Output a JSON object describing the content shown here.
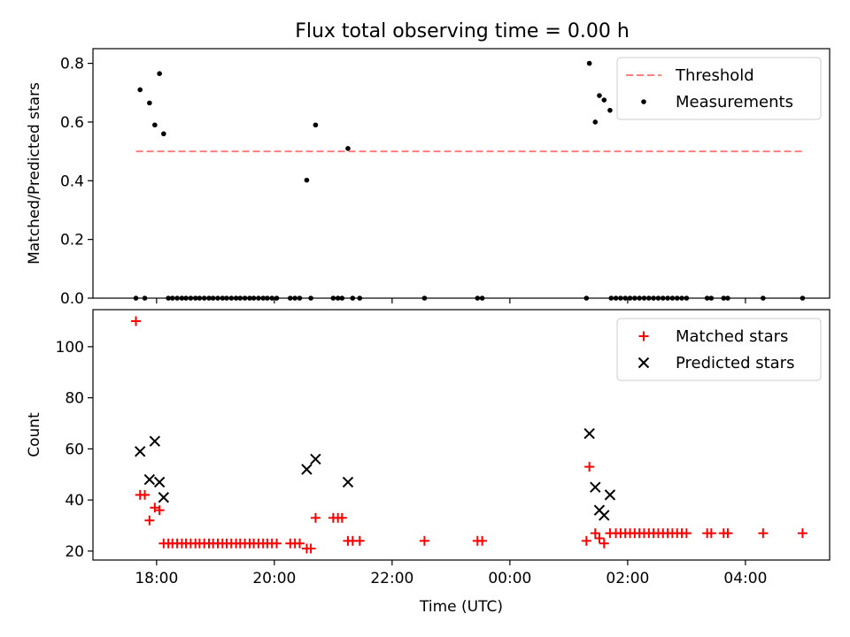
{
  "figure": {
    "title": "Flux total observing time = 0.00 h"
  },
  "chart_data": [
    {
      "type": "scatter",
      "panel": "top",
      "title": "Flux total observing time = 0.00 h",
      "xlabel": "",
      "ylabel": "Matched/Predicted stars",
      "xlim": [
        16.92,
        29.43
      ],
      "ylim": [
        0.0,
        0.85
      ],
      "yticks": [
        0.0,
        0.2,
        0.4,
        0.6,
        0.8
      ],
      "ytick_labels": [
        "0.0",
        "0.2",
        "0.4",
        "0.6",
        "0.8"
      ],
      "xticks": [
        18,
        20,
        22,
        24,
        26,
        28
      ],
      "xtick_labels": [
        "",
        "",
        "",
        "",
        "",
        ""
      ],
      "legend_position": "top-right",
      "threshold": {
        "name": "Threshold",
        "value": 0.5,
        "x_range": [
          17.65,
          28.97
        ],
        "color": "#ff7f7f",
        "style": "dashed"
      },
      "series": [
        {
          "name": "Measurements",
          "color": "#000000",
          "marker": "dot",
          "points": [
            [
              17.65,
              0.0
            ],
            [
              17.72,
              0.71
            ],
            [
              17.8,
              0.0
            ],
            [
              17.88,
              0.665
            ],
            [
              17.97,
              0.59
            ],
            [
              18.05,
              0.765
            ],
            [
              18.12,
              0.56
            ],
            [
              18.2,
              0.0
            ],
            [
              18.27,
              0.0
            ],
            [
              18.35,
              0.0
            ],
            [
              18.43,
              0.0
            ],
            [
              18.5,
              0.0
            ],
            [
              18.58,
              0.0
            ],
            [
              18.66,
              0.0
            ],
            [
              18.73,
              0.0
            ],
            [
              18.81,
              0.0
            ],
            [
              18.89,
              0.0
            ],
            [
              18.96,
              0.0
            ],
            [
              19.04,
              0.0
            ],
            [
              19.12,
              0.0
            ],
            [
              19.19,
              0.0
            ],
            [
              19.27,
              0.0
            ],
            [
              19.35,
              0.0
            ],
            [
              19.42,
              0.0
            ],
            [
              19.5,
              0.0
            ],
            [
              19.58,
              0.0
            ],
            [
              19.65,
              0.0
            ],
            [
              19.73,
              0.0
            ],
            [
              19.81,
              0.0
            ],
            [
              19.88,
              0.0
            ],
            [
              19.96,
              0.0
            ],
            [
              20.04,
              0.0
            ],
            [
              20.27,
              0.0
            ],
            [
              20.35,
              0.0
            ],
            [
              20.43,
              0.0
            ],
            [
              20.55,
              0.402
            ],
            [
              20.62,
              0.0
            ],
            [
              20.7,
              0.59
            ],
            [
              21.0,
              0.0
            ],
            [
              21.08,
              0.0
            ],
            [
              21.15,
              0.0
            ],
            [
              21.25,
              0.51
            ],
            [
              21.33,
              0.0
            ],
            [
              21.45,
              0.0
            ],
            [
              22.55,
              0.0
            ],
            [
              23.45,
              0.0
            ],
            [
              23.53,
              0.0
            ],
            [
              25.3,
              0.0
            ],
            [
              25.35,
              0.8
            ],
            [
              25.45,
              0.6
            ],
            [
              25.52,
              0.69
            ],
            [
              25.6,
              0.675
            ],
            [
              25.7,
              0.64
            ],
            [
              25.72,
              0.0
            ],
            [
              25.8,
              0.0
            ],
            [
              25.88,
              0.0
            ],
            [
              25.96,
              0.0
            ],
            [
              26.04,
              0.0
            ],
            [
              26.12,
              0.0
            ],
            [
              26.2,
              0.0
            ],
            [
              26.28,
              0.0
            ],
            [
              26.36,
              0.0
            ],
            [
              26.44,
              0.0
            ],
            [
              26.52,
              0.0
            ],
            [
              26.6,
              0.0
            ],
            [
              26.68,
              0.0
            ],
            [
              26.76,
              0.0
            ],
            [
              26.84,
              0.0
            ],
            [
              26.92,
              0.0
            ],
            [
              27.0,
              0.0
            ],
            [
              27.35,
              0.0
            ],
            [
              27.42,
              0.0
            ],
            [
              27.63,
              0.0
            ],
            [
              27.7,
              0.0
            ],
            [
              28.3,
              0.0
            ],
            [
              28.97,
              0.0
            ]
          ]
        }
      ]
    },
    {
      "type": "scatter",
      "panel": "bottom",
      "title": "",
      "xlabel": "Time (UTC)",
      "ylabel": "Count",
      "xlim": [
        16.92,
        29.43
      ],
      "ylim": [
        16.5,
        114.5
      ],
      "yticks": [
        20,
        40,
        60,
        80,
        100
      ],
      "ytick_labels": [
        "20",
        "40",
        "60",
        "80",
        "100"
      ],
      "xticks": [
        18,
        20,
        22,
        24,
        26,
        28
      ],
      "xtick_labels": [
        "18:00",
        "20:00",
        "22:00",
        "00:00",
        "02:00",
        "04:00"
      ],
      "legend_position": "top-right",
      "series": [
        {
          "name": "Matched stars",
          "color": "#ff0000",
          "marker": "plus",
          "points": [
            [
              17.65,
              110
            ],
            [
              17.72,
              42
            ],
            [
              17.8,
              42
            ],
            [
              17.88,
              32
            ],
            [
              17.97,
              37
            ],
            [
              18.05,
              36
            ],
            [
              18.12,
              23
            ],
            [
              18.2,
              23
            ],
            [
              18.27,
              23
            ],
            [
              18.35,
              23
            ],
            [
              18.43,
              23
            ],
            [
              18.5,
              23
            ],
            [
              18.58,
              23
            ],
            [
              18.66,
              23
            ],
            [
              18.73,
              23
            ],
            [
              18.81,
              23
            ],
            [
              18.89,
              23
            ],
            [
              18.96,
              23
            ],
            [
              19.04,
              23
            ],
            [
              19.12,
              23
            ],
            [
              19.19,
              23
            ],
            [
              19.27,
              23
            ],
            [
              19.35,
              23
            ],
            [
              19.42,
              23
            ],
            [
              19.5,
              23
            ],
            [
              19.58,
              23
            ],
            [
              19.65,
              23
            ],
            [
              19.73,
              23
            ],
            [
              19.81,
              23
            ],
            [
              19.88,
              23
            ],
            [
              19.96,
              23
            ],
            [
              20.04,
              23
            ],
            [
              20.27,
              23
            ],
            [
              20.35,
              23
            ],
            [
              20.43,
              23
            ],
            [
              20.55,
              21
            ],
            [
              20.62,
              21
            ],
            [
              20.7,
              33
            ],
            [
              21.0,
              33
            ],
            [
              21.08,
              33
            ],
            [
              21.15,
              33
            ],
            [
              21.25,
              24
            ],
            [
              21.33,
              24
            ],
            [
              21.45,
              24
            ],
            [
              22.55,
              24
            ],
            [
              23.45,
              24
            ],
            [
              23.53,
              24
            ],
            [
              25.3,
              24
            ],
            [
              25.35,
              53
            ],
            [
              25.45,
              27
            ],
            [
              25.52,
              25
            ],
            [
              25.6,
              23
            ],
            [
              25.7,
              27
            ],
            [
              25.8,
              27
            ],
            [
              25.88,
              27
            ],
            [
              25.96,
              27
            ],
            [
              26.04,
              27
            ],
            [
              26.12,
              27
            ],
            [
              26.2,
              27
            ],
            [
              26.28,
              27
            ],
            [
              26.36,
              27
            ],
            [
              26.44,
              27
            ],
            [
              26.52,
              27
            ],
            [
              26.6,
              27
            ],
            [
              26.68,
              27
            ],
            [
              26.76,
              27
            ],
            [
              26.84,
              27
            ],
            [
              26.92,
              27
            ],
            [
              27.0,
              27
            ],
            [
              27.35,
              27
            ],
            [
              27.42,
              27
            ],
            [
              27.63,
              27
            ],
            [
              27.7,
              27
            ],
            [
              28.3,
              27
            ],
            [
              28.97,
              27
            ]
          ]
        },
        {
          "name": "Predicted stars",
          "color": "#000000",
          "marker": "x",
          "points": [
            [
              17.72,
              59
            ],
            [
              17.88,
              48
            ],
            [
              17.97,
              63
            ],
            [
              18.05,
              47
            ],
            [
              18.12,
              41
            ],
            [
              20.55,
              52
            ],
            [
              20.7,
              56
            ],
            [
              21.25,
              47
            ],
            [
              25.35,
              66
            ],
            [
              25.45,
              45
            ],
            [
              25.52,
              36
            ],
            [
              25.6,
              34
            ],
            [
              25.7,
              42
            ]
          ]
        }
      ]
    }
  ]
}
